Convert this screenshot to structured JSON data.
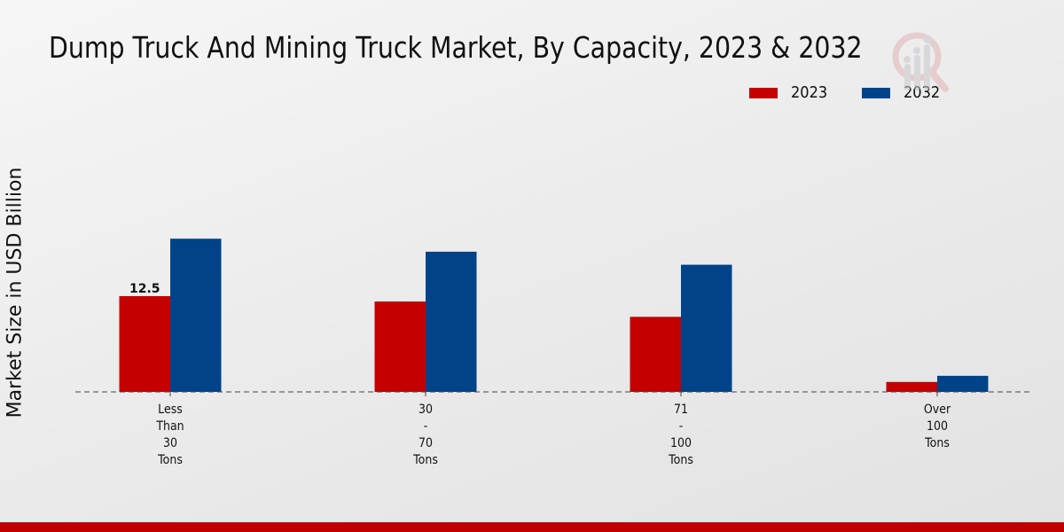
{
  "title": "Dump Truck And Mining Truck Market, By Capacity, 2023 & 2032",
  "watermark_icon": "magnifier-bar-chart-logo-icon",
  "chart_data": {
    "type": "bar",
    "title": "Dump Truck And Mining Truck Market, By Capacity, 2023 & 2032",
    "xlabel": "",
    "ylabel": "Market Size in USD Billion",
    "categories": [
      [
        "Less",
        "Than",
        "30",
        "Tons"
      ],
      [
        "30",
        "-",
        "70",
        "Tons"
      ],
      [
        "71",
        "-",
        "100",
        "Tons"
      ],
      [
        "Over",
        "100",
        "Tons"
      ]
    ],
    "category_names": [
      "Less Than 30 Tons",
      "30 - 70 Tons",
      "71 - 100 Tons",
      "Over 100 Tons"
    ],
    "series": [
      {
        "name": "2023",
        "color": "#c40000",
        "values": [
          12.5,
          11.8,
          9.8,
          1.3
        ]
      },
      {
        "name": "2032",
        "color": "#004389",
        "values": [
          20.0,
          18.3,
          16.6,
          2.1
        ]
      }
    ],
    "data_labels": [
      {
        "series": 0,
        "index": 0,
        "text": "12.5"
      }
    ],
    "ylim": [
      0,
      28
    ],
    "grid": false,
    "baseline_style": "dashed",
    "legend_position": "top-right"
  },
  "legend": [
    {
      "label": "2023",
      "color": "#c40000"
    },
    {
      "label": "2032",
      "color": "#004389"
    }
  ],
  "footer_color": "#c00000"
}
